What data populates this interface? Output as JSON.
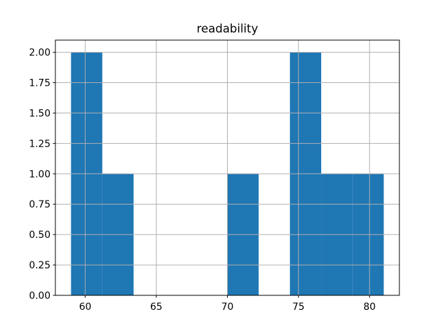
{
  "chart_data": {
    "type": "bar",
    "subtype": "histogram",
    "title": "readability",
    "xlabel": "",
    "ylabel": "",
    "bin_edges": [
      59.0,
      61.2,
      63.4,
      65.6,
      67.8,
      70.0,
      72.2,
      74.4,
      76.6,
      78.8,
      81.0
    ],
    "counts": [
      2,
      1,
      0,
      0,
      0,
      1,
      0,
      2,
      1,
      1
    ],
    "xlim": [
      57.9,
      82.1
    ],
    "ylim": [
      0,
      2.1
    ],
    "x_ticks": [
      60,
      65,
      70,
      75,
      80
    ],
    "x_tick_labels": [
      "60",
      "65",
      "70",
      "75",
      "80"
    ],
    "y_ticks": [
      0,
      0.25,
      0.5,
      0.75,
      1.0,
      1.25,
      1.5,
      1.75,
      2.0
    ],
    "y_tick_labels": [
      "0.00",
      "0.25",
      "0.50",
      "0.75",
      "1.00",
      "1.25",
      "1.50",
      "1.75",
      "2.00"
    ],
    "grid": true,
    "grid_above_bars": true,
    "legend": null,
    "bar_color": "#1f77b4",
    "grid_color": "#b0b0b0",
    "axis_color": "#000000",
    "background_color": "#ffffff"
  }
}
